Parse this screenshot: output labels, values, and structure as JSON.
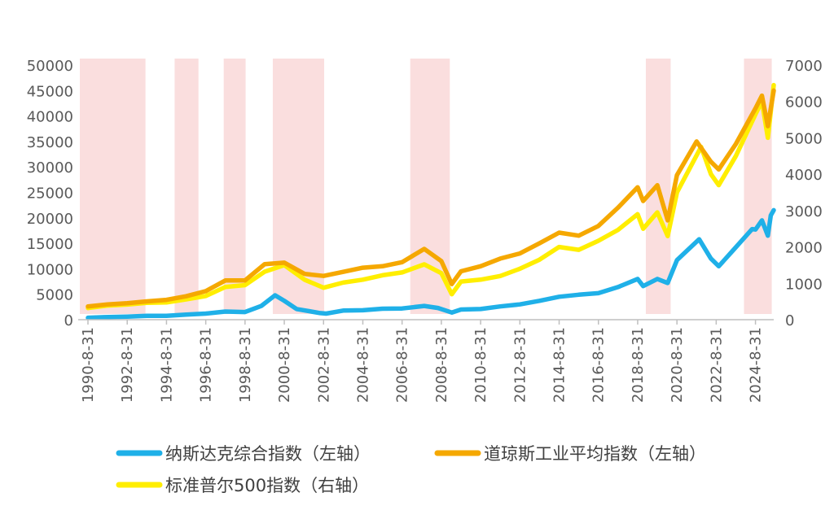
{
  "chart_data": {
    "type": "line",
    "x_ticks": [
      "1990-8-31",
      "1992-8-31",
      "1994-8-31",
      "1996-8-31",
      "1998-8-31",
      "2000-8-31",
      "2002-8-31",
      "2004-8-31",
      "2006-8-31",
      "2008-8-31",
      "2010-8-31",
      "2012-8-31",
      "2014-8-31",
      "2016-8-31",
      "2018-8-31",
      "2020-8-31",
      "2022-8-31",
      "2024-8-31"
    ],
    "y_left": {
      "min": 0,
      "max": 50000,
      "ticks": [
        "0",
        "5000",
        "10000",
        "15000",
        "20000",
        "25000",
        "30000",
        "35000",
        "40000",
        "45000",
        "50000"
      ]
    },
    "y_right": {
      "min": 0,
      "max": 7000,
      "ticks": [
        "0",
        "1000",
        "2000",
        "3000",
        "4000",
        "5000",
        "6000",
        "7000"
      ]
    },
    "recession_bands": [
      {
        "start": 1990.67,
        "end": 1993.6
      },
      {
        "start": 1995.5,
        "end": 1996.3
      },
      {
        "start": 1998.0,
        "end": 1998.7
      },
      {
        "start": 2000.5,
        "end": 2002.7
      },
      {
        "start": 2007.5,
        "end": 2009.1
      },
      {
        "start": 2019.5,
        "end": 2020.35
      },
      {
        "start": 2024.5,
        "end": 2025.5
      }
    ],
    "band_color": "#fadede",
    "series": [
      {
        "name": "纳斯达克综合指数（左轴）",
        "axis": "left",
        "color": "#1fb0e8",
        "points": [
          [
            1990.67,
            380
          ],
          [
            1991.5,
            500
          ],
          [
            1992.67,
            600
          ],
          [
            1993.67,
            750
          ],
          [
            1994.67,
            760
          ],
          [
            1995.67,
            1000
          ],
          [
            1996.67,
            1200
          ],
          [
            1997.67,
            1600
          ],
          [
            1998.67,
            1500
          ],
          [
            1999.5,
            2700
          ],
          [
            2000.2,
            4800
          ],
          [
            2000.67,
            3700
          ],
          [
            2001.3,
            2100
          ],
          [
            2002.5,
            1300
          ],
          [
            2002.8,
            1200
          ],
          [
            2003.7,
            1800
          ],
          [
            2004.67,
            1850
          ],
          [
            2005.67,
            2150
          ],
          [
            2006.67,
            2200
          ],
          [
            2007.8,
            2700
          ],
          [
            2008.5,
            2300
          ],
          [
            2009.2,
            1400
          ],
          [
            2009.67,
            2000
          ],
          [
            2010.67,
            2100
          ],
          [
            2011.67,
            2600
          ],
          [
            2012.67,
            3000
          ],
          [
            2013.67,
            3700
          ],
          [
            2014.67,
            4500
          ],
          [
            2015.67,
            4900
          ],
          [
            2016.67,
            5200
          ],
          [
            2017.67,
            6400
          ],
          [
            2018.67,
            8000
          ],
          [
            2018.95,
            6600
          ],
          [
            2019.67,
            8000
          ],
          [
            2020.2,
            7200
          ],
          [
            2020.67,
            11700
          ],
          [
            2021.8,
            15800
          ],
          [
            2022.4,
            12000
          ],
          [
            2022.8,
            10500
          ],
          [
            2023.5,
            13500
          ],
          [
            2024.5,
            17800
          ],
          [
            2024.67,
            17700
          ],
          [
            2025.0,
            19500
          ],
          [
            2025.3,
            16500
          ],
          [
            2025.45,
            20500
          ],
          [
            2025.6,
            21500
          ]
        ]
      },
      {
        "name": "道琼斯工业平均指数（左轴）",
        "axis": "left",
        "color": "#f5a800",
        "points": [
          [
            1990.67,
            2600
          ],
          [
            1991.67,
            3000
          ],
          [
            1992.67,
            3250
          ],
          [
            1993.67,
            3600
          ],
          [
            1994.67,
            3900
          ],
          [
            1995.67,
            4600
          ],
          [
            1996.67,
            5600
          ],
          [
            1997.67,
            7700
          ],
          [
            1998.67,
            7700
          ],
          [
            1999.67,
            10900
          ],
          [
            2000.67,
            11200
          ],
          [
            2001.7,
            9000
          ],
          [
            2002.67,
            8600
          ],
          [
            2003.67,
            9400
          ],
          [
            2004.67,
            10200
          ],
          [
            2005.67,
            10500
          ],
          [
            2006.67,
            11300
          ],
          [
            2007.8,
            13900
          ],
          [
            2008.67,
            11500
          ],
          [
            2009.2,
            7000
          ],
          [
            2009.67,
            9500
          ],
          [
            2010.67,
            10500
          ],
          [
            2011.67,
            12000
          ],
          [
            2012.67,
            13000
          ],
          [
            2013.67,
            15000
          ],
          [
            2014.67,
            17100
          ],
          [
            2015.67,
            16500
          ],
          [
            2016.67,
            18400
          ],
          [
            2017.67,
            22000
          ],
          [
            2018.67,
            26000
          ],
          [
            2018.95,
            23300
          ],
          [
            2019.67,
            26400
          ],
          [
            2020.2,
            19500
          ],
          [
            2020.67,
            28400
          ],
          [
            2021.67,
            35000
          ],
          [
            2022.4,
            31000
          ],
          [
            2022.8,
            29500
          ],
          [
            2023.67,
            34500
          ],
          [
            2024.67,
            41500
          ],
          [
            2025.0,
            44000
          ],
          [
            2025.3,
            38000
          ],
          [
            2025.6,
            45000
          ]
        ]
      },
      {
        "name": "标准普尔500指数（右轴）",
        "axis": "right",
        "color": "#ffee00",
        "points": [
          [
            1990.67,
            320
          ],
          [
            1991.67,
            390
          ],
          [
            1992.67,
            415
          ],
          [
            1993.67,
            465
          ],
          [
            1994.67,
            475
          ],
          [
            1995.67,
            560
          ],
          [
            1996.67,
            650
          ],
          [
            1997.67,
            900
          ],
          [
            1998.67,
            950
          ],
          [
            1999.67,
            1320
          ],
          [
            2000.67,
            1500
          ],
          [
            2001.7,
            1100
          ],
          [
            2002.67,
            880
          ],
          [
            2003.67,
            1020
          ],
          [
            2004.67,
            1100
          ],
          [
            2005.67,
            1220
          ],
          [
            2006.67,
            1300
          ],
          [
            2007.8,
            1520
          ],
          [
            2008.67,
            1280
          ],
          [
            2009.2,
            700
          ],
          [
            2009.67,
            1050
          ],
          [
            2010.67,
            1100
          ],
          [
            2011.67,
            1200
          ],
          [
            2012.67,
            1400
          ],
          [
            2013.67,
            1650
          ],
          [
            2014.67,
            2000
          ],
          [
            2015.67,
            1920
          ],
          [
            2016.67,
            2170
          ],
          [
            2017.67,
            2470
          ],
          [
            2018.67,
            2900
          ],
          [
            2018.95,
            2500
          ],
          [
            2019.67,
            2950
          ],
          [
            2020.2,
            2300
          ],
          [
            2020.67,
            3500
          ],
          [
            2021.9,
            4750
          ],
          [
            2022.4,
            4000
          ],
          [
            2022.8,
            3700
          ],
          [
            2023.67,
            4500
          ],
          [
            2024.67,
            5650
          ],
          [
            2025.0,
            6000
          ],
          [
            2025.3,
            5000
          ],
          [
            2025.6,
            6450
          ]
        ]
      }
    ]
  }
}
